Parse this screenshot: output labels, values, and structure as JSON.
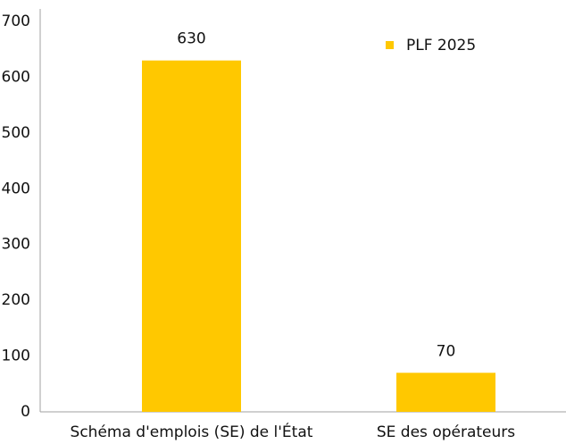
{
  "chart_data": {
    "type": "bar",
    "categories": [
      "Schéma d'emplois (SE) de l'État",
      "SE des opérateurs"
    ],
    "series": [
      {
        "name": "PLF 2025",
        "color": "#ffc800",
        "values": [
          630,
          70
        ]
      }
    ],
    "ylim": [
      0,
      700
    ],
    "yticks": [
      0,
      100,
      200,
      300,
      400,
      500,
      600,
      700
    ],
    "grid": false,
    "legend": "top-right"
  }
}
